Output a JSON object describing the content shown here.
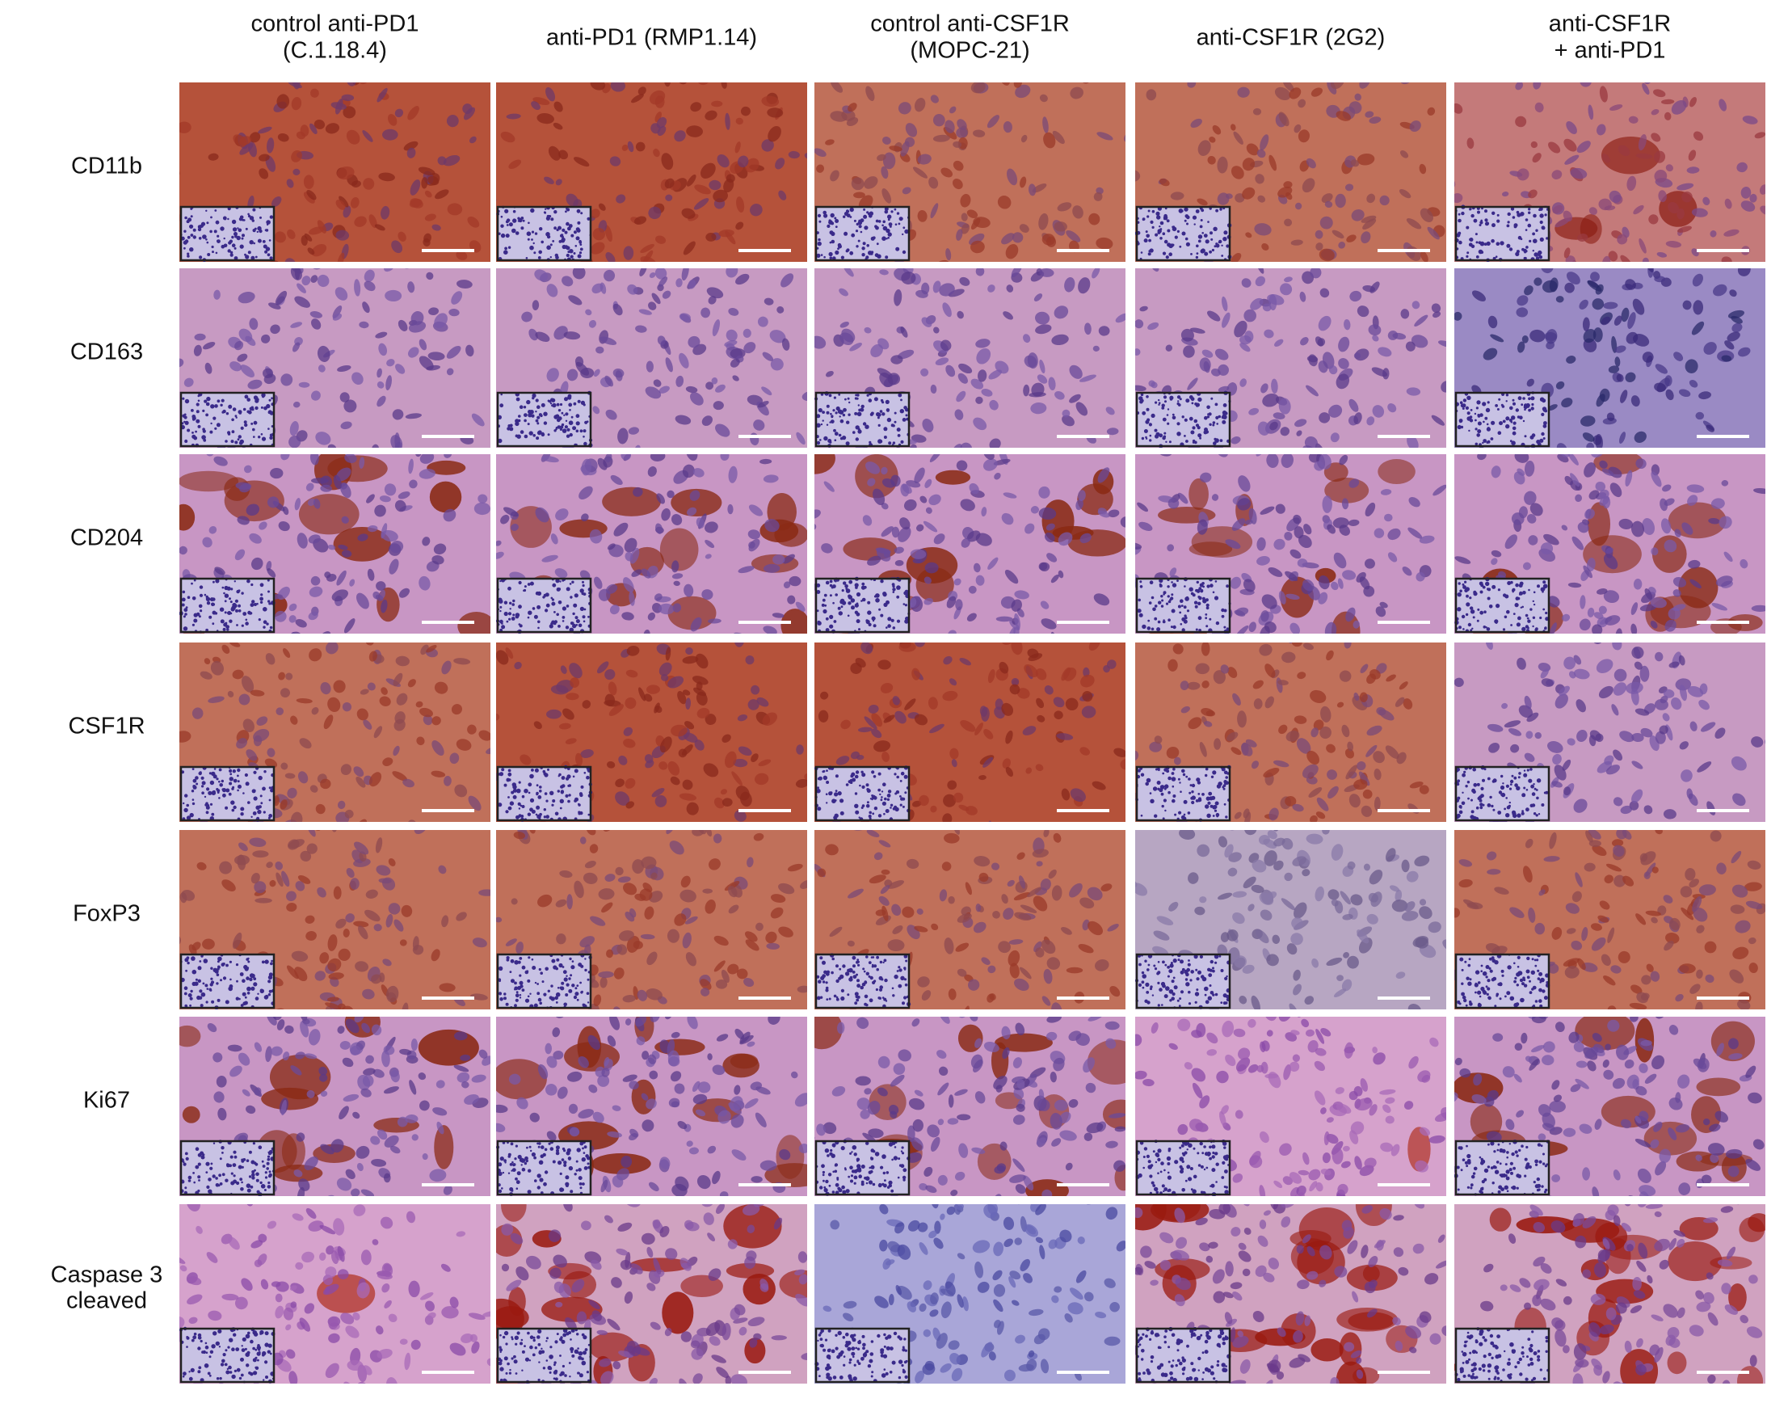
{
  "columns": [
    {
      "lines": [
        "control anti-PD1",
        "(C.1.18.4)"
      ]
    },
    {
      "lines": [
        "anti-PD1 (RMP1.14)"
      ]
    },
    {
      "lines": [
        "control anti-CSF1R",
        "(MOPC-21)"
      ]
    },
    {
      "lines": [
        "anti-CSF1R (2G2)"
      ]
    },
    {
      "lines": [
        "anti-CSF1R",
        "+ anti-PD1"
      ]
    }
  ],
  "rows": [
    {
      "lines": [
        "CD11b"
      ]
    },
    {
      "lines": [
        "CD163"
      ]
    },
    {
      "lines": [
        "CD204"
      ]
    },
    {
      "lines": [
        "CSF1R"
      ]
    },
    {
      "lines": [
        "FoxP3"
      ]
    },
    {
      "lines": [
        "Ki67"
      ]
    },
    {
      "lines": [
        "Caspase 3",
        "cleaved"
      ]
    }
  ]
}
